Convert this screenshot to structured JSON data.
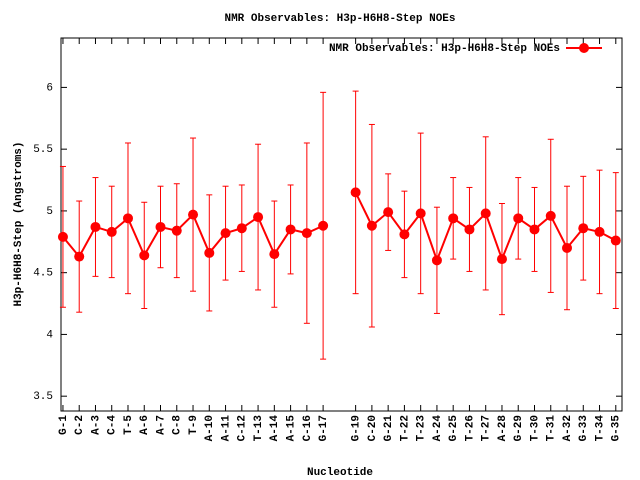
{
  "chart_data": {
    "type": "line",
    "title": "NMR Observables: H3p-H6H8-Step NOEs",
    "x_label": "Nucleotide",
    "y_label": "H3p-H6H8-Step (Angstroms)",
    "categories": [
      "G-1",
      "C-2",
      "A-3",
      "C-4",
      "T-5",
      "A-6",
      "A-7",
      "C-8",
      "T-9",
      "A-10",
      "A-11",
      "C-12",
      "T-13",
      "A-14",
      "A-15",
      "C-16",
      "G-17",
      null,
      "G-19",
      "C-20",
      "G-21",
      "T-22",
      "T-23",
      "A-24",
      "G-25",
      "T-26",
      "T-27",
      "A-28",
      "G-29",
      "T-30",
      "T-31",
      "A-32",
      "G-33",
      "T-34",
      "G-35"
    ],
    "series": [
      {
        "name": "NMR Observables: H3p-H6H8-Step NOEs",
        "color": "#ff0000",
        "values": [
          4.79,
          4.63,
          4.87,
          4.83,
          4.94,
          4.64,
          4.87,
          4.84,
          4.97,
          4.66,
          4.82,
          4.86,
          4.95,
          4.65,
          4.85,
          4.82,
          4.88,
          null,
          5.15,
          4.88,
          4.99,
          4.81,
          4.98,
          4.6,
          4.94,
          4.85,
          4.98,
          4.61,
          4.94,
          4.85,
          4.96,
          4.7,
          4.86,
          4.83,
          4.76
        ],
        "errors": [
          0.57,
          0.45,
          0.4,
          0.37,
          0.61,
          0.43,
          0.33,
          0.38,
          0.62,
          0.47,
          0.38,
          0.35,
          0.59,
          0.43,
          0.36,
          0.73,
          1.08,
          null,
          0.82,
          0.82,
          0.31,
          0.35,
          0.65,
          0.43,
          0.33,
          0.34,
          0.62,
          0.45,
          0.33,
          0.34,
          0.62,
          0.5,
          0.42,
          0.5,
          0.55
        ]
      }
    ],
    "ylim": [
      3.38,
      6.4
    ],
    "yticks": [
      3.5,
      4,
      4.5,
      5,
      5.5,
      6
    ],
    "legend": "top-right"
  }
}
